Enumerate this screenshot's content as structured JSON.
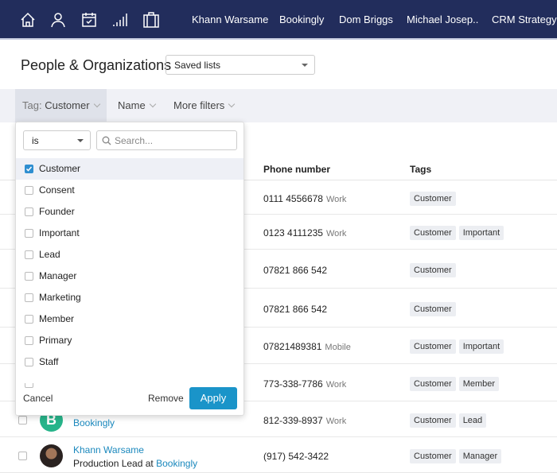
{
  "topbar": {
    "icons": [
      "home-icon",
      "person-icon",
      "calendar-check-icon",
      "signal-bars-icon",
      "briefcase-icon"
    ],
    "recent": [
      "Khann Warsame",
      "Bookingly",
      "Dom Briggs",
      "Michael Josep..",
      "CRM Strategy"
    ]
  },
  "page": {
    "title": "People & Organizations",
    "saved_lists": "Saved lists"
  },
  "filters": {
    "tag_label": "Tag:",
    "tag_value": "Customer",
    "name": "Name",
    "more": "More filters"
  },
  "table": {
    "headers": {
      "phone": "Phone number",
      "tags": "Tags"
    },
    "rows": [
      {
        "phone": "0111 4556678",
        "type": "Work",
        "tags": [
          "Customer"
        ]
      },
      {
        "phone": "0123 4111235",
        "type": "Work",
        "tags": [
          "Customer",
          "Important"
        ]
      },
      {
        "phone": "07821 866 542",
        "type": "",
        "tags": [
          "Customer"
        ]
      },
      {
        "phone": "07821 866 542",
        "type": "",
        "tags": [
          "Customer"
        ]
      },
      {
        "phone": "07821489381",
        "type": "Mobile",
        "tags": [
          "Customer",
          "Important"
        ]
      },
      {
        "phone": "773-338-7786",
        "type": "Work",
        "tags": [
          "Customer",
          "Member"
        ]
      },
      {
        "name": "Bookingly",
        "avatar_letter": "B",
        "phone": "812-339-8937",
        "type": "Work",
        "tags": [
          "Customer",
          "Lead"
        ]
      },
      {
        "name": "Khann Warsame",
        "subtitle": "Production Lead at",
        "org": "Bookingly",
        "phone": "(917) 542-3422",
        "type": "",
        "tags": [
          "Customer",
          "Manager"
        ]
      }
    ]
  },
  "popup": {
    "operator": "is",
    "search_placeholder": "Search...",
    "options": [
      {
        "label": "Customer",
        "checked": true
      },
      {
        "label": "Consent",
        "checked": false
      },
      {
        "label": "Founder",
        "checked": false
      },
      {
        "label": "Important",
        "checked": false
      },
      {
        "label": "Lead",
        "checked": false
      },
      {
        "label": "Manager",
        "checked": false
      },
      {
        "label": "Marketing",
        "checked": false
      },
      {
        "label": "Member",
        "checked": false
      },
      {
        "label": "Primary",
        "checked": false
      },
      {
        "label": "Staff",
        "checked": false
      }
    ],
    "cancel": "Cancel",
    "remove": "Remove",
    "apply": "Apply"
  },
  "colors": {
    "topbar": "#222d5c",
    "accent": "#1a94c9",
    "link": "#1a88bd",
    "avatar_b": "#27b48a"
  }
}
